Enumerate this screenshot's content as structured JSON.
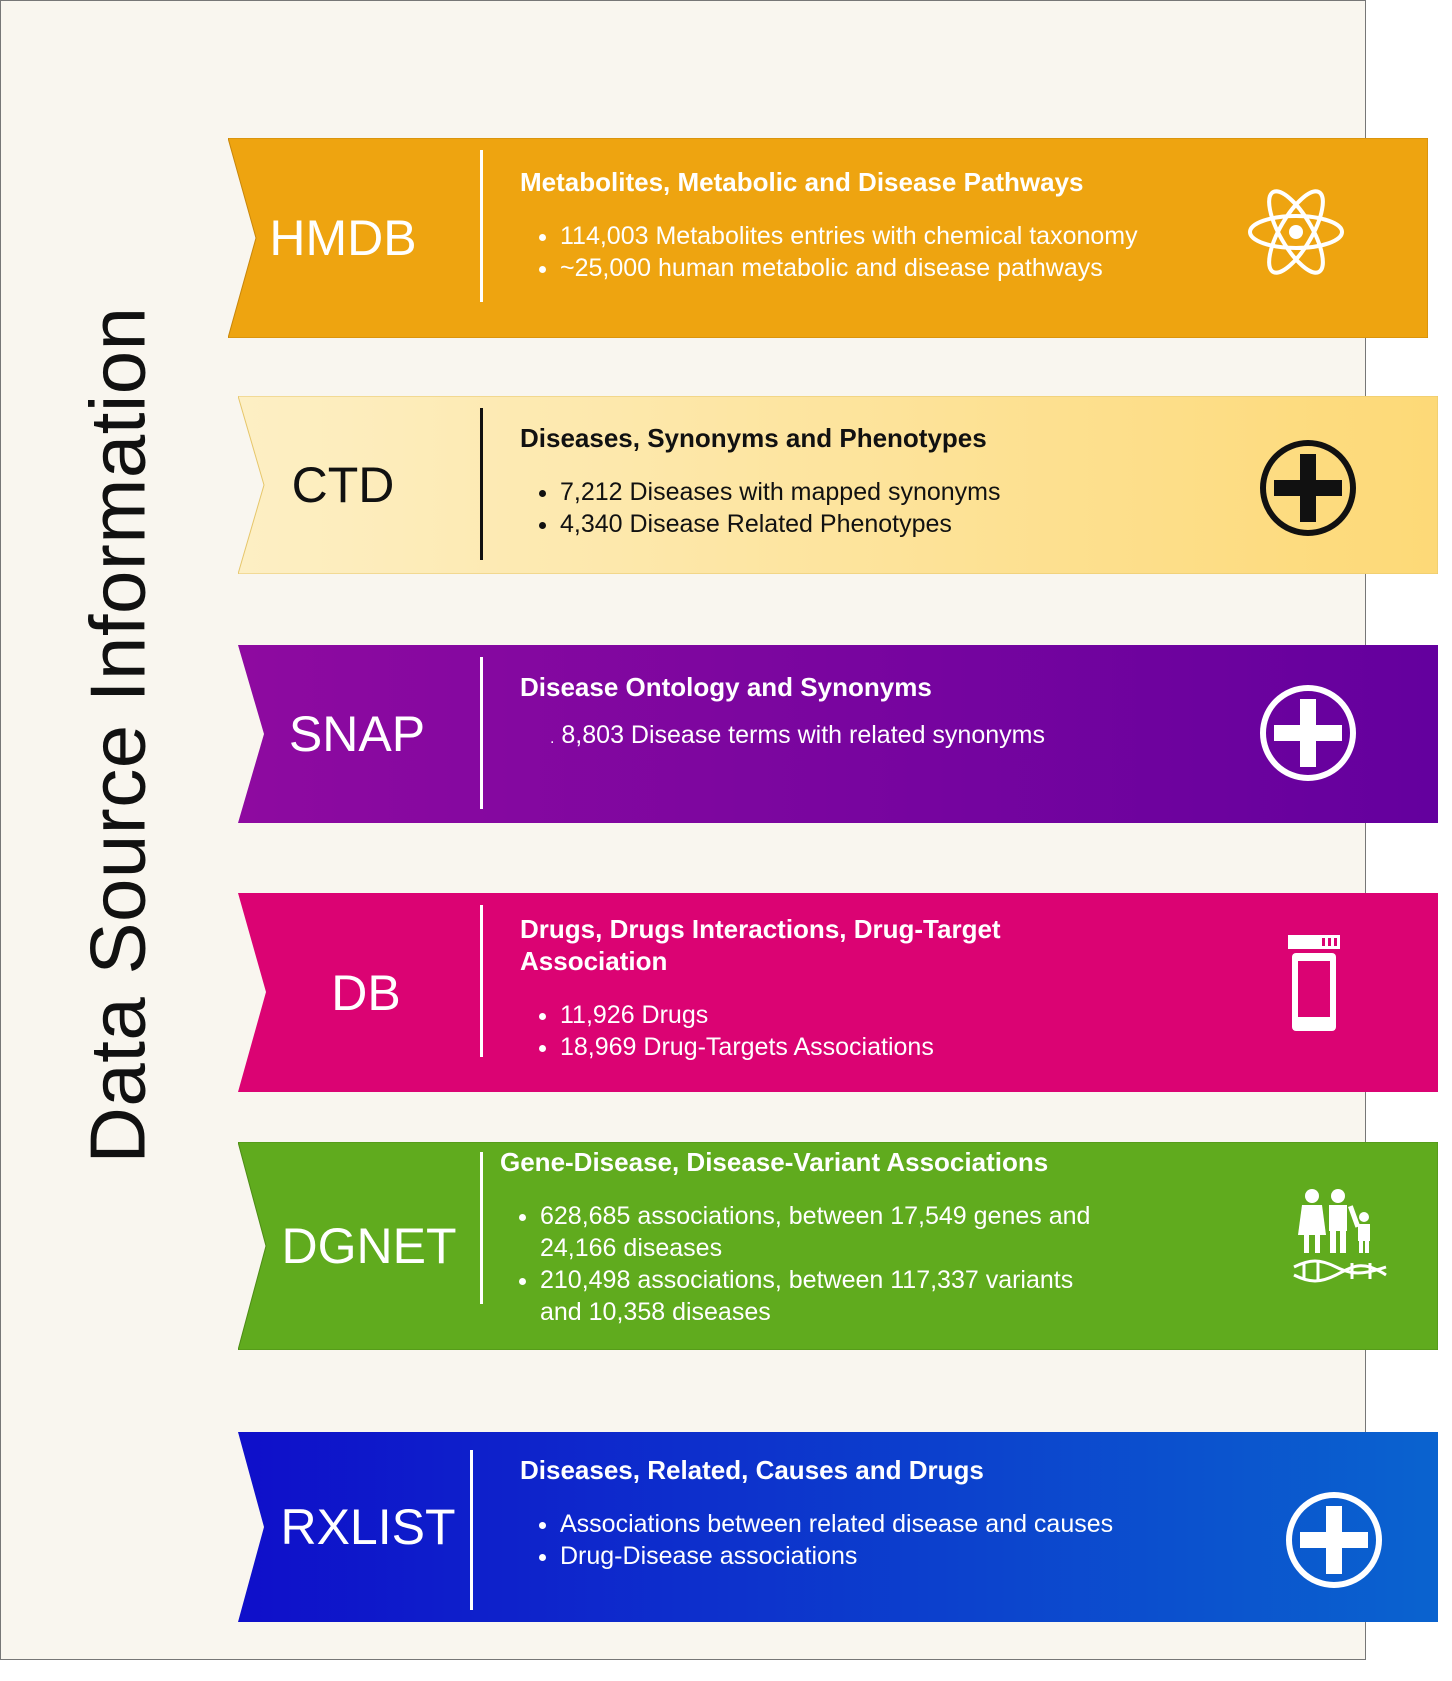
{
  "title": "Data Source Information",
  "sources": [
    {
      "abbr": "HMDB",
      "heading": "Metabolites, Metabolic and Disease Pathways",
      "bullets": [
        "114,003 Metabolites entries with chemical taxonomy",
        "~25,000 human metabolic and disease pathways"
      ],
      "icon": "atom-icon",
      "colors": [
        "#eea410",
        "#eea410"
      ]
    },
    {
      "abbr": "CTD",
      "heading": "Diseases, Synonyms and Phenotypes",
      "bullets": [
        "7,212 Diseases with mapped synonyms",
        "4,340  Disease Related Phenotypes"
      ],
      "icon": "plus-circle-icon",
      "colors": [
        "#fdefc4",
        "#fdd977"
      ]
    },
    {
      "abbr": "SNAP",
      "heading": "Disease Ontology and Synonyms",
      "bullets": [
        "8,803 Disease terms with related synonyms"
      ],
      "icon": "plus-circle-icon",
      "colors": [
        "#8e0aa0",
        "#64009e"
      ]
    },
    {
      "abbr": "DB",
      "heading": "Drugs, Drugs Interactions, Drug-Target Association",
      "bullets": [
        "11,926 Drugs",
        "18,969 Drug-Targets Associations"
      ],
      "icon": "pill-bottle-icon",
      "colors": [
        "#db0373",
        "#db0373"
      ]
    },
    {
      "abbr": "DGNET",
      "heading": "Gene-Disease, Disease-Variant Associations",
      "bullets": [
        "628,685 associations, between 17,549 genes and 24,166 diseases",
        " 210,498 associations, between 117,337 variants and 10,358 diseases"
      ],
      "icon": "family-dna-icon",
      "colors": [
        "#60ab1e",
        "#60ab1e"
      ]
    },
    {
      "abbr": "RXLIST",
      "heading": "Diseases, Related, Causes and Drugs",
      "bullets": [
        "Associations between related disease and causes",
        "Drug-Disease associations"
      ],
      "icon": "plus-circle-icon",
      "colors": [
        "#0f0fca",
        "#0a63cf"
      ]
    }
  ]
}
